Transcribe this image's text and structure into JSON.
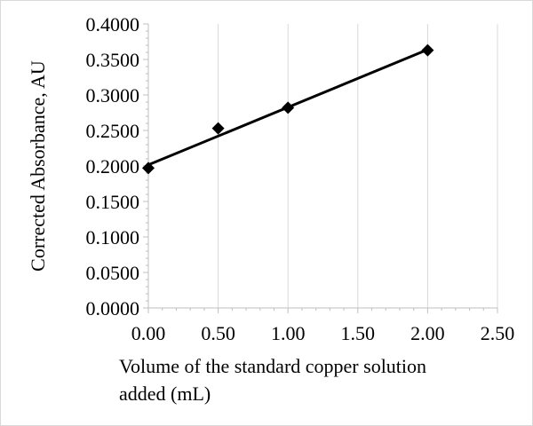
{
  "chart_data": {
    "type": "scatter",
    "title": "",
    "xlabel_lines": [
      "Volume of the standard copper solution",
      "added (mL)"
    ],
    "ylabel": "Corrected Absorbance, AU",
    "xlim": [
      0,
      2.5
    ],
    "ylim": [
      0,
      0.4
    ],
    "x_ticks": [
      "0.00",
      "0.50",
      "1.00",
      "1.50",
      "2.00",
      "2.50"
    ],
    "y_ticks": [
      "0.0000",
      "0.0500",
      "0.1000",
      "0.1500",
      "0.2000",
      "0.2500",
      "0.3000",
      "0.3500",
      "0.4000"
    ],
    "x_gridlines": true,
    "y_gridlines": false,
    "series": [
      {
        "marker": "diamond",
        "color": "#000000",
        "points": [
          {
            "x": 0.0,
            "y": 0.197
          },
          {
            "x": 0.5,
            "y": 0.253
          },
          {
            "x": 1.0,
            "y": 0.282
          },
          {
            "x": 2.0,
            "y": 0.363
          }
        ]
      }
    ],
    "trendline": {
      "type": "linear",
      "color": "#000000",
      "intercept": 0.2015,
      "slope": 0.0812
    }
  }
}
